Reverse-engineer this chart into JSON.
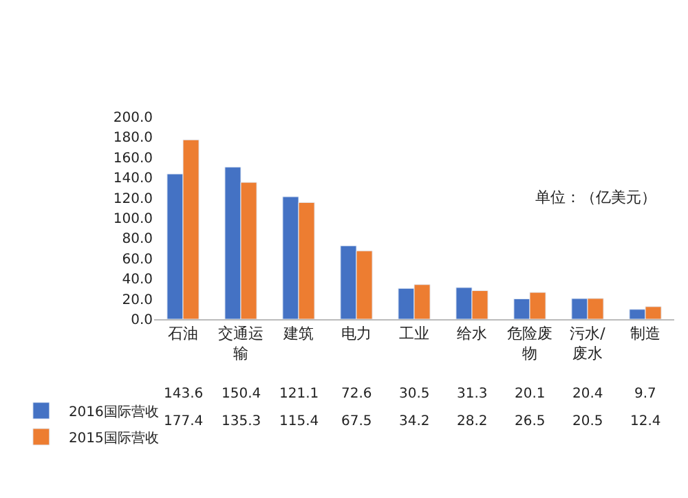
{
  "chart_data": {
    "type": "bar",
    "categories": [
      "石油",
      "交通运输",
      "建筑",
      "电力",
      "工业",
      "给水",
      "危险废物",
      "污水/废水",
      "制造"
    ],
    "series": [
      {
        "name": "2016国际营收",
        "color": "#4472c4",
        "values": [
          143.6,
          150.4,
          121.1,
          72.6,
          30.5,
          31.3,
          20.1,
          20.4,
          9.7
        ]
      },
      {
        "name": "2015国际营收",
        "color": "#ed7d31",
        "values": [
          177.4,
          135.3,
          115.4,
          67.5,
          34.2,
          28.2,
          26.5,
          20.5,
          12.4
        ]
      }
    ],
    "ylim": [
      0,
      200
    ],
    "yticks": [
      {
        "value": 0,
        "label": "0.0"
      },
      {
        "value": 20,
        "label": "20.0"
      },
      {
        "value": 40,
        "label": "40.0"
      },
      {
        "value": 60,
        "label": "60.0"
      },
      {
        "value": 80,
        "label": "80.0"
      },
      {
        "value": 100,
        "label": "100.0"
      },
      {
        "value": 120,
        "label": "120.0"
      },
      {
        "value": 140,
        "label": "140.0"
      },
      {
        "value": 160,
        "label": "160.0"
      },
      {
        "value": 180,
        "label": "180.0"
      },
      {
        "value": 200,
        "label": "200.0"
      }
    ],
    "annotations": [
      "单位：（亿美元）"
    ],
    "data_labels": true,
    "grid": false,
    "legend": "bottom left"
  }
}
